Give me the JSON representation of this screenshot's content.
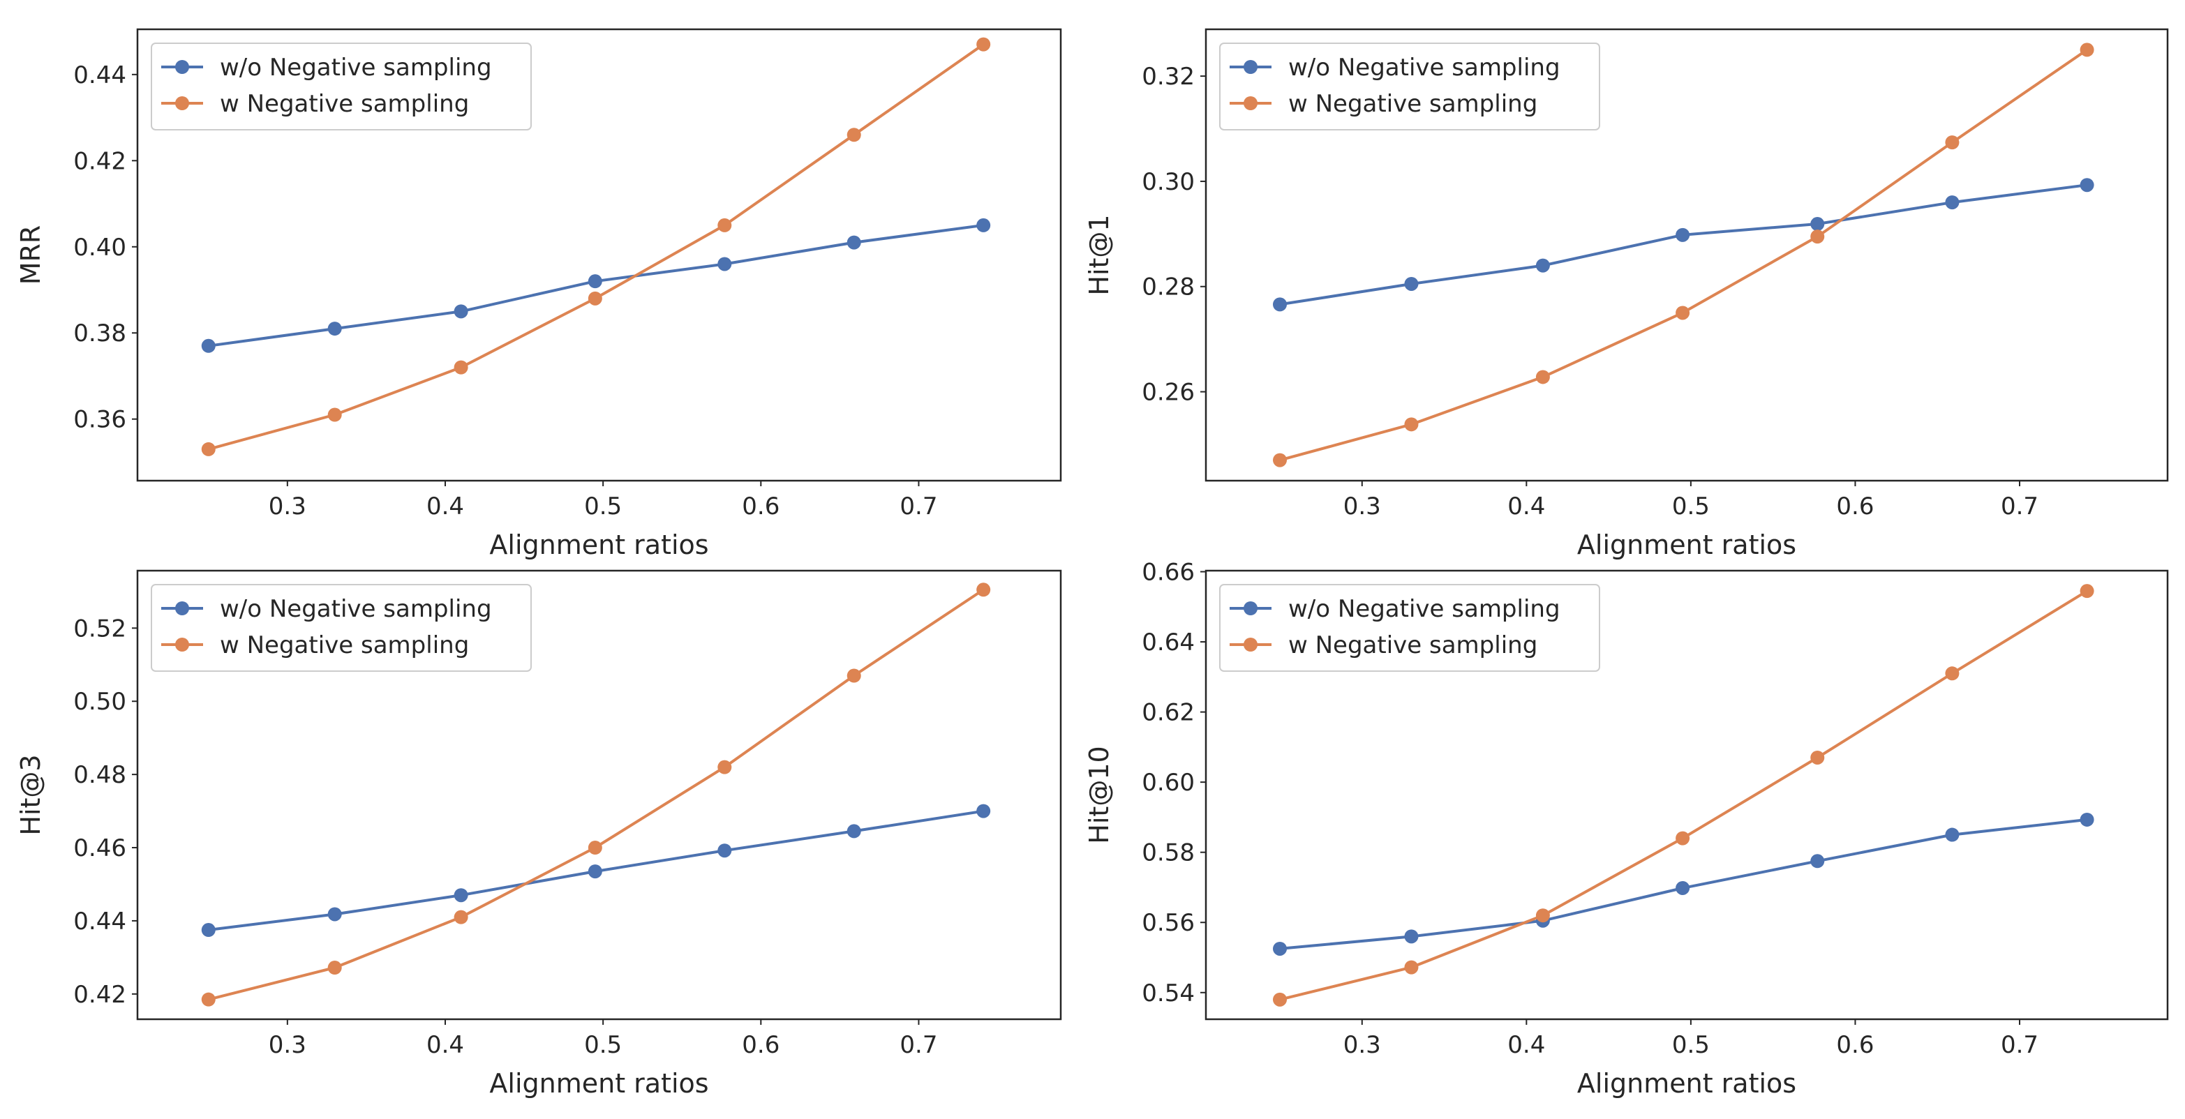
{
  "figure": {
    "background": "#ffffff",
    "axes_color": "#262626",
    "series_colors": {
      "without": "#4c72b0",
      "with": "#dd8452"
    }
  },
  "chart_data": [
    {
      "type": "line",
      "ylabel": "MRR",
      "xlabel": "Alignment ratios",
      "x": [
        0.25,
        0.33,
        0.41,
        0.495,
        0.577,
        0.659,
        0.741
      ],
      "xlim": [
        0.205,
        0.79
      ],
      "xticks": [
        0.3,
        0.4,
        0.5,
        0.6,
        0.7
      ],
      "xtick_labels": [
        "0.3",
        "0.4",
        "0.5",
        "0.6",
        "0.7"
      ],
      "ylim": [
        0.3457,
        0.4505
      ],
      "yticks": [
        0.36,
        0.38,
        0.4,
        0.42,
        0.44
      ],
      "ytick_labels": [
        "0.36",
        "0.38",
        "0.40",
        "0.42",
        "0.44"
      ],
      "legend_position": "upper-left",
      "series": [
        {
          "name": "w/o Negative sampling",
          "color": "#4c72b0",
          "values": [
            0.377,
            0.381,
            0.385,
            0.392,
            0.396,
            0.401,
            0.405
          ]
        },
        {
          "name": "w Negative sampling",
          "color": "#dd8452",
          "values": [
            0.353,
            0.361,
            0.372,
            0.388,
            0.405,
            0.426,
            0.447
          ]
        }
      ]
    },
    {
      "type": "line",
      "ylabel": "Hit@1",
      "xlabel": "Alignment ratios",
      "x": [
        0.25,
        0.33,
        0.41,
        0.495,
        0.577,
        0.659,
        0.741
      ],
      "xlim": [
        0.205,
        0.79
      ],
      "xticks": [
        0.3,
        0.4,
        0.5,
        0.6,
        0.7
      ],
      "xtick_labels": [
        "0.3",
        "0.4",
        "0.5",
        "0.6",
        "0.7"
      ],
      "ylim": [
        0.2431,
        0.3289
      ],
      "yticks": [
        0.26,
        0.28,
        0.3,
        0.32
      ],
      "ytick_labels": [
        "0.26",
        "0.28",
        "0.30",
        "0.32"
      ],
      "legend_position": "upper-left",
      "series": [
        {
          "name": "w/o Negative sampling",
          "color": "#4c72b0",
          "values": [
            0.2766,
            0.2805,
            0.284,
            0.2898,
            0.2919,
            0.296,
            0.2993
          ]
        },
        {
          "name": "w Negative sampling",
          "color": "#dd8452",
          "values": [
            0.247,
            0.2538,
            0.2628,
            0.275,
            0.2895,
            0.3074,
            0.325
          ]
        }
      ]
    },
    {
      "type": "line",
      "ylabel": "Hit@3",
      "xlabel": "Alignment ratios",
      "x": [
        0.25,
        0.33,
        0.41,
        0.495,
        0.577,
        0.659,
        0.741
      ],
      "xlim": [
        0.205,
        0.79
      ],
      "xticks": [
        0.3,
        0.4,
        0.5,
        0.6,
        0.7
      ],
      "xtick_labels": [
        "0.3",
        "0.4",
        "0.5",
        "0.6",
        "0.7"
      ],
      "ylim": [
        0.4131,
        0.5357
      ],
      "yticks": [
        0.42,
        0.44,
        0.46,
        0.48,
        0.5,
        0.52
      ],
      "ytick_labels": [
        "0.42",
        "0.44",
        "0.46",
        "0.48",
        "0.50",
        "0.52"
      ],
      "legend_position": "upper-left",
      "series": [
        {
          "name": "w/o Negative sampling",
          "color": "#4c72b0",
          "values": [
            0.4375,
            0.4418,
            0.447,
            0.4535,
            0.4592,
            0.4645,
            0.47
          ]
        },
        {
          "name": "w Negative sampling",
          "color": "#dd8452",
          "values": [
            0.4185,
            0.4272,
            0.441,
            0.46,
            0.482,
            0.507,
            0.5305
          ]
        }
      ]
    },
    {
      "type": "line",
      "ylabel": "Hit@10",
      "xlabel": "Alignment ratios",
      "x": [
        0.25,
        0.33,
        0.41,
        0.495,
        0.577,
        0.659,
        0.741
      ],
      "xlim": [
        0.205,
        0.79
      ],
      "xticks": [
        0.3,
        0.4,
        0.5,
        0.6,
        0.7
      ],
      "xtick_labels": [
        "0.3",
        "0.4",
        "0.5",
        "0.6",
        "0.7"
      ],
      "ylim": [
        0.5324,
        0.6603
      ],
      "yticks": [
        0.54,
        0.56,
        0.58,
        0.6,
        0.62,
        0.64,
        0.66
      ],
      "ytick_labels": [
        "0.54",
        "0.56",
        "0.58",
        "0.60",
        "0.62",
        "0.64",
        "0.66"
      ],
      "legend_position": "upper-left",
      "series": [
        {
          "name": "w/o Negative sampling",
          "color": "#4c72b0",
          "values": [
            0.5525,
            0.556,
            0.5605,
            0.5698,
            0.5775,
            0.585,
            0.5893
          ]
        },
        {
          "name": "w Negative sampling",
          "color": "#dd8452",
          "values": [
            0.538,
            0.5472,
            0.562,
            0.584,
            0.607,
            0.631,
            0.6545
          ]
        }
      ]
    }
  ]
}
